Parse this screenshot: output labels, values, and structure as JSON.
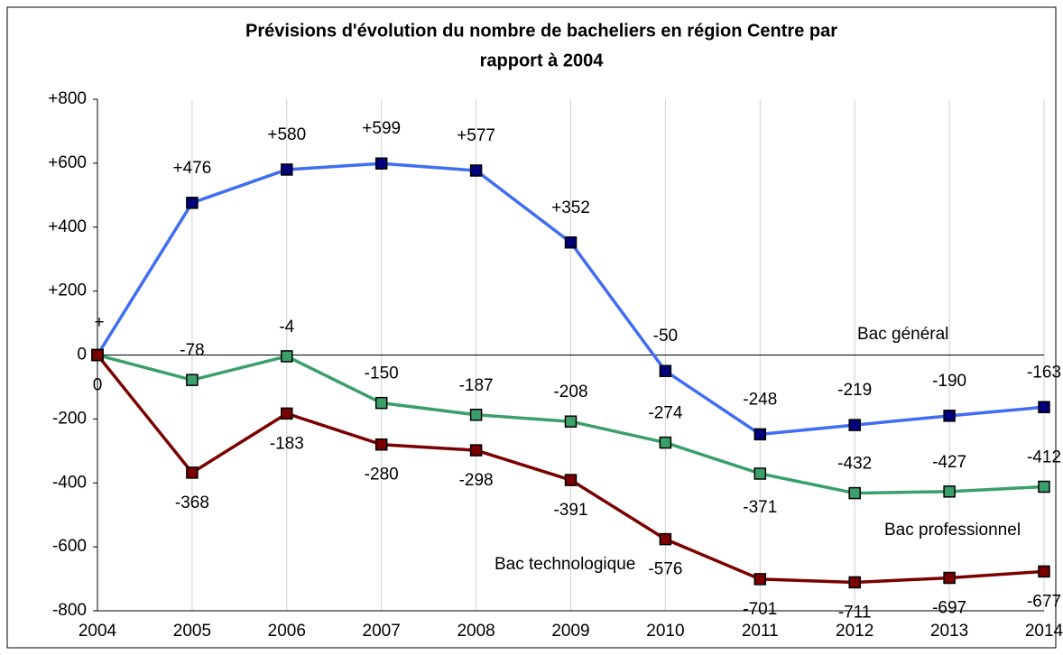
{
  "chart_data": {
    "type": "line",
    "title": "Prévisions d'évolution du nombre de bacheliers en région Centre par",
    "subtitle": "rapport à 2004",
    "categories": [
      "2004",
      "2005",
      "2006",
      "2007",
      "2008",
      "2009",
      "2010",
      "2011",
      "2012",
      "2013",
      "2014"
    ],
    "series": [
      {
        "name": "Bac général",
        "color": "#3f6ef2",
        "marker_color": "#00007a",
        "values": [
          0,
          476,
          580,
          599,
          577,
          352,
          -50,
          -248,
          -219,
          -190,
          -163
        ],
        "value_labels": [
          null,
          "+476",
          "+580",
          "+599",
          "+577",
          "+352",
          "-50",
          "-248",
          "-219",
          "-190",
          "-163"
        ]
      },
      {
        "name": "Bac professionnel",
        "color": "#3a9f6a",
        "marker_color": "#3a9f6a",
        "values": [
          0,
          -78,
          -4,
          -150,
          -187,
          -208,
          -274,
          -371,
          -432,
          -427,
          -412
        ]
      },
      {
        "name": "Bac technologique",
        "color": "#7a0000",
        "marker_color": "#7a0000",
        "values": [
          0,
          -368,
          -183,
          -280,
          -298,
          -391,
          -576,
          -701,
          -711,
          -697,
          -677
        ]
      }
    ],
    "annotations": [
      "+"
    ],
    "ylim": [
      -800,
      800
    ],
    "yticks": [
      {
        "value": 800,
        "label": "+800"
      },
      {
        "value": 600,
        "label": "+600"
      },
      {
        "value": 400,
        "label": "+400"
      },
      {
        "value": 200,
        "label": "+200"
      },
      0,
      -200,
      -400,
      -600,
      -800
    ],
    "grid": true
  }
}
